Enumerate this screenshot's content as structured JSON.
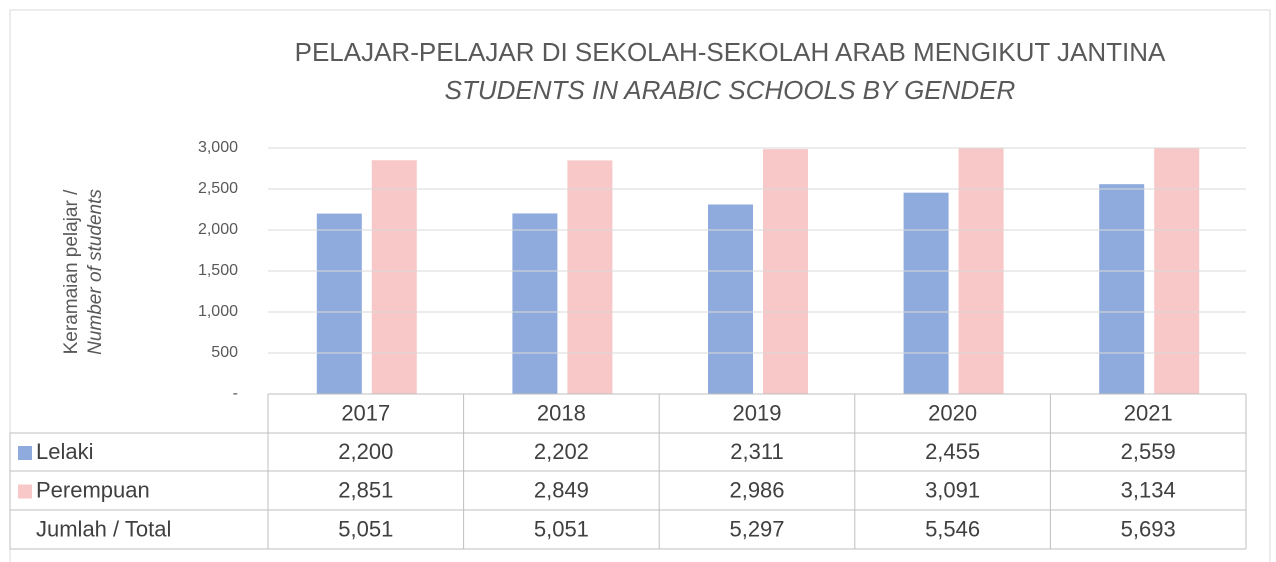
{
  "chart_data": {
    "type": "bar",
    "title": "PELAJAR-PELAJAR DI SEKOLAH-SEKOLAH ARAB MENGIKUT JANTINA",
    "subtitle": "STUDENTS IN ARABIC SCHOOLS BY GENDER",
    "y_label": "Keramaian pelajar /",
    "y_label_en": "Number of students",
    "categories": [
      "2017",
      "2018",
      "2019",
      "2020",
      "2021"
    ],
    "series": [
      {
        "name": "Lelaki",
        "color": "#8faadc",
        "values": [
          2200,
          2202,
          2311,
          2455,
          2559
        ],
        "value_labels": [
          "2,200",
          "2,202",
          "2,311",
          "2,455",
          "2,559"
        ]
      },
      {
        "name": "Perempuan",
        "color": "#f8c8c8",
        "values": [
          2851,
          2849,
          2986,
          3091,
          3134
        ],
        "value_labels": [
          "2,851",
          "2,849",
          "2,986",
          "3,091",
          "3,134"
        ]
      }
    ],
    "total_row": {
      "name": "Jumlah / Total",
      "labels": [
        "5,051",
        "5,051",
        "5,297",
        "5,546",
        "5,693"
      ]
    },
    "ylim": [
      0,
      3000
    ],
    "yticks": [
      {
        "value": 0,
        "label": "-"
      },
      500,
      {
        "value": 1000,
        "label": "1,000"
      },
      {
        "value": 1500,
        "label": "1,500"
      },
      {
        "value": 2000,
        "label": "2,000"
      },
      {
        "value": 2500,
        "label": "2,500"
      },
      {
        "value": 3000,
        "label": "3,000"
      }
    ],
    "grid": true
  }
}
